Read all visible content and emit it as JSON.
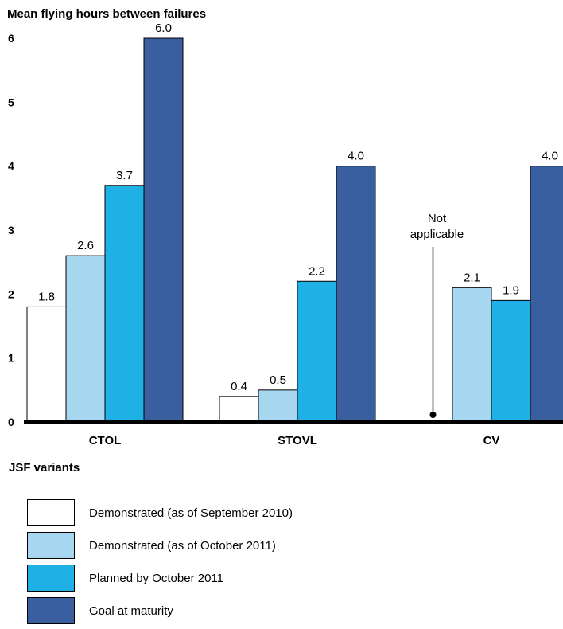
{
  "chart_data": {
    "type": "bar",
    "ylabel": "Mean flying hours between failures",
    "xlabel": "JSF variants",
    "ylim": [
      0,
      6
    ],
    "yticks": [
      "0",
      "1",
      "2",
      "3",
      "4",
      "5",
      "6"
    ],
    "categories": [
      "CTOL",
      "STOVL",
      "CV"
    ],
    "series": [
      {
        "name": "Demonstrated (as of September 2010)",
        "color": "#ffffff",
        "values": [
          1.8,
          0.4,
          null
        ]
      },
      {
        "name": "Demonstrated (as of October 2011)",
        "color": "#a7d6f1",
        "values": [
          2.6,
          0.5,
          2.1
        ]
      },
      {
        "name": "Planned by October 2011",
        "color": "#1fb1e6",
        "values": [
          3.7,
          2.2,
          1.9
        ]
      },
      {
        "name": "Goal at maturity",
        "color": "#3a5fa0",
        "values": [
          6.0,
          4.0,
          4.0
        ]
      }
    ],
    "value_labels": [
      [
        "1.8",
        "0.4",
        ""
      ],
      [
        "2.6",
        "0.5",
        "2.1"
      ],
      [
        "3.7",
        "2.2",
        "1.9"
      ],
      [
        "6.0",
        "4.0",
        "4.0"
      ]
    ],
    "annotation": {
      "category": "CV",
      "series": 0,
      "lines": [
        "Not",
        "applicable"
      ]
    },
    "grid": false,
    "legend": "bottom"
  }
}
